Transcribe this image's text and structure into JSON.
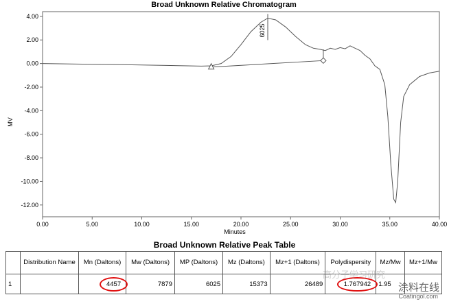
{
  "chart_data": {
    "type": "line",
    "title": "Broad Unknown Relative Chromatogram",
    "xlabel": "Minutes",
    "ylabel": "MV",
    "xlim": [
      0,
      40
    ],
    "ylim": [
      -13,
      4.4
    ],
    "xticks": [
      "0.00",
      "5.00",
      "10.00",
      "15.00",
      "20.00",
      "25.00",
      "30.00",
      "35.00",
      "40.00"
    ],
    "yticks": [
      "4.00",
      "2.00",
      "0.00",
      "-2.00",
      "-4.00",
      "-6.00",
      "-8.00",
      "-10.00",
      "-12.00"
    ],
    "series": [
      {
        "x": [
          0,
          4,
          8,
          12,
          16,
          17,
          18,
          19,
          20,
          21,
          22,
          22.7,
          23.5,
          24.5,
          25.5,
          26.5,
          27.3,
          28,
          28.5,
          29,
          29.5,
          30,
          30.5,
          31,
          31.5,
          32,
          32.5,
          33,
          33.5,
          34,
          34.5,
          34.8,
          35.1,
          35.4,
          35.6,
          35.8,
          36.1,
          36.4,
          37,
          38,
          39,
          40
        ],
        "y": [
          0,
          -0.05,
          -0.1,
          -0.15,
          -0.22,
          -0.2,
          0,
          0.6,
          1.6,
          2.7,
          3.5,
          3.85,
          3.7,
          3.1,
          2.3,
          1.6,
          1.3,
          1.2,
          1.1,
          1.3,
          1.2,
          1.35,
          1.25,
          1.5,
          1.3,
          1.1,
          0.7,
          0.4,
          -0.2,
          -0.5,
          -1.8,
          -4.5,
          -8.5,
          -11.5,
          -11.8,
          -10,
          -5,
          -2.8,
          -1.8,
          -1.1,
          -0.8,
          -0.65
        ]
      }
    ],
    "baseline": [
      {
        "x": 17,
        "y": -0.3
      },
      {
        "x": 28.3,
        "y": 0.25
      }
    ],
    "peak_label": {
      "x": 22.7,
      "y": 3.85,
      "text": "6025"
    },
    "grid": false,
    "legend": "none"
  },
  "table": {
    "title": "Broad Unknown Relative Peak Table",
    "headers": [
      "",
      "Distribution Name",
      "Mn (Daltons)",
      "Mw (Daltons)",
      "MP (Daltons)",
      "Mz (Daltons)",
      "Mz+1 (Daltons)",
      "Polydispersity",
      "Mz/Mw",
      "Mz+1/Mw"
    ],
    "row": {
      "index": "1",
      "name": "",
      "mn": "4457",
      "mw": "7879",
      "mp": "6025",
      "mz": "15373",
      "mz1": "26489",
      "pd": "1.767942",
      "mzmw": "1.95",
      "mz1mw": ""
    }
  },
  "watermark": {
    "main": "涂料在线",
    "sub": "Coatingol.com",
    "faint": "高分子学习研究"
  }
}
